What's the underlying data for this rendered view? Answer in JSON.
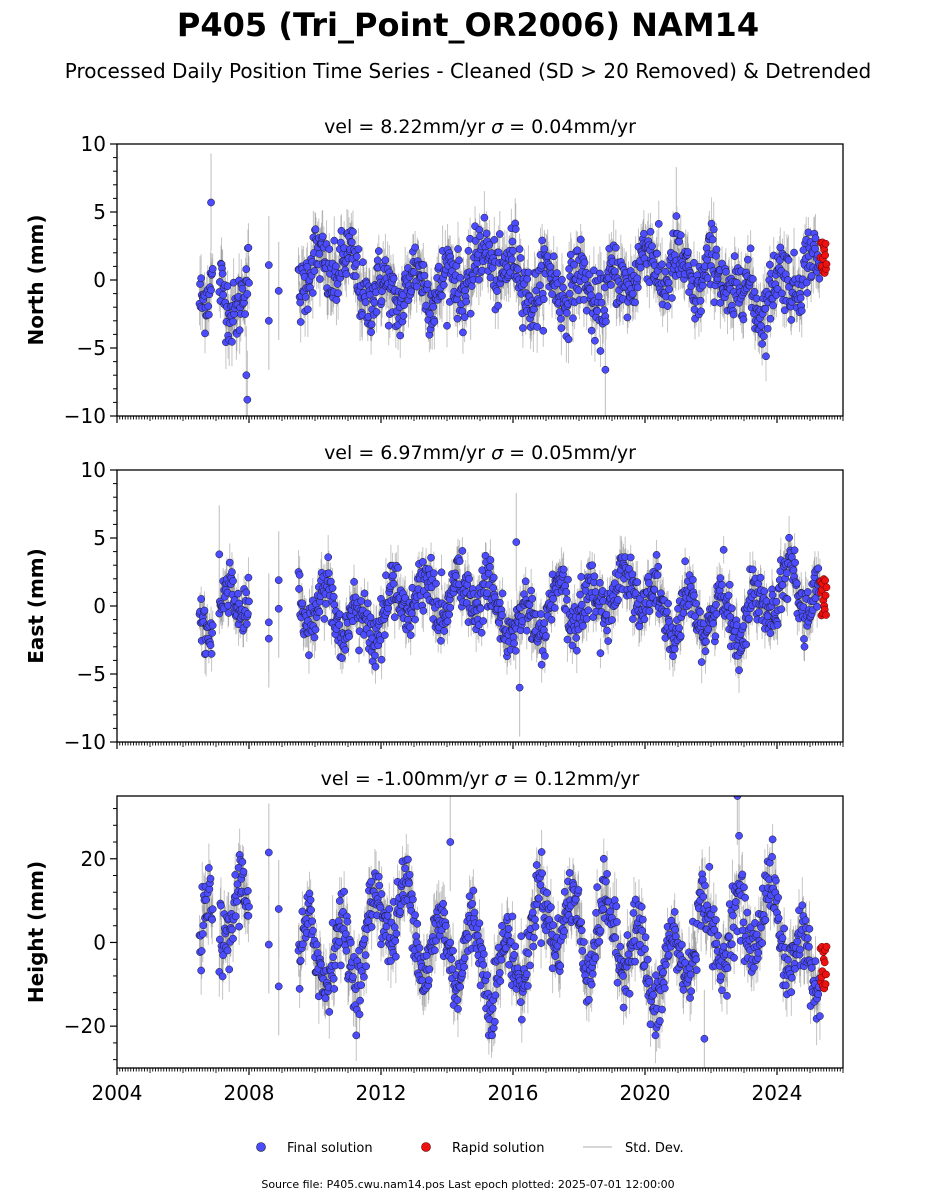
{
  "title": "P405 (Tri_Point_OR2006) NAM14",
  "subtitle": "Processed Daily Position Time Series - Cleaned (SD > 20 Removed) & Detrended",
  "colors": {
    "final": "#4b4bff",
    "final_edge": "#1a1a1a",
    "rapid": "#ee1111",
    "rapid_edge": "#550000",
    "stddev": "#c8c8c8",
    "axis": "#000000"
  },
  "chart_data": [
    {
      "type": "scatter",
      "id": "north",
      "title_prefix": "vel = 8.22mm/yr",
      "sigma_symbol": "σ",
      "title_suffix": " = 0.04mm/yr",
      "ylabel": "North (mm)",
      "ylim": [
        -10,
        10
      ],
      "yticks": [
        -10,
        -5,
        0,
        5,
        10
      ],
      "ytick_labels": [
        "−10",
        "−5",
        "0",
        "5",
        "10"
      ],
      "xlim": [
        2004.0,
        2026.0
      ],
      "segments": [
        [
          2006.5,
          2006.9
        ],
        [
          2007.1,
          2008.0
        ],
        [
          2009.5,
          2025.3
        ]
      ],
      "amplitude": 1.3,
      "noise": 1.2,
      "phase": 0.2,
      "outliers": [
        [
          2006.85,
          5.7
        ],
        [
          2007.95,
          -8.8
        ],
        [
          2007.92,
          -7.0
        ],
        [
          2008.6,
          -3.0
        ],
        [
          2008.6,
          1.1
        ],
        [
          2008.9,
          -0.8
        ],
        [
          2020.95,
          4.7
        ],
        [
          2018.8,
          -6.6
        ]
      ],
      "rapid_x": [
        2025.32,
        2025.5
      ],
      "rapid_range": [
        0.5,
        2.8
      ]
    },
    {
      "type": "scatter",
      "id": "east",
      "title_prefix": "vel = 6.97mm/yr",
      "sigma_symbol": "σ",
      "title_suffix": " = 0.05mm/yr",
      "ylabel": "East (mm)",
      "ylim": [
        -10,
        10
      ],
      "yticks": [
        -10,
        -5,
        0,
        5,
        10
      ],
      "ytick_labels": [
        "−10",
        "−5",
        "0",
        "5",
        "10"
      ],
      "xlim": [
        2004.0,
        2026.0
      ],
      "segments": [
        [
          2006.5,
          2006.9
        ],
        [
          2007.1,
          2008.0
        ],
        [
          2009.5,
          2025.3
        ]
      ],
      "amplitude": 1.5,
      "noise": 1.0,
      "phase": 0.9,
      "outliers": [
        [
          2007.1,
          3.8
        ],
        [
          2008.6,
          -2.4
        ],
        [
          2008.6,
          -1.2
        ],
        [
          2008.9,
          1.9
        ],
        [
          2008.9,
          -0.2
        ],
        [
          2016.1,
          4.7
        ],
        [
          2016.2,
          -6.0
        ]
      ],
      "rapid_x": [
        2025.32,
        2025.5
      ],
      "rapid_range": [
        -0.7,
        2.0
      ]
    },
    {
      "type": "scatter",
      "id": "height",
      "title_prefix": "vel = -1.00mm/yr",
      "sigma_symbol": "σ",
      "title_suffix": " = 0.12mm/yr",
      "ylabel": "Height (mm)",
      "ylim": [
        -30,
        35
      ],
      "yticks": [
        -20,
        0,
        20
      ],
      "ytick_labels": [
        "−20",
        "0",
        "20"
      ],
      "xlim": [
        2004.0,
        2026.0
      ],
      "segments": [
        [
          2006.5,
          2006.9
        ],
        [
          2007.1,
          2008.0
        ],
        [
          2009.5,
          2025.3
        ]
      ],
      "amplitude": 8.0,
      "noise": 4.0,
      "phase": 0.45,
      "outliers": [
        [
          2008.6,
          21.5
        ],
        [
          2008.6,
          -0.5
        ],
        [
          2008.9,
          8.0
        ],
        [
          2008.9,
          -10.5
        ],
        [
          2014.1,
          24.0
        ],
        [
          2022.8,
          35.0
        ],
        [
          2022.85,
          25.5
        ],
        [
          2021.8,
          -23.0
        ]
      ],
      "rapid_x": [
        2025.32,
        2025.5
      ],
      "rapid_range": [
        -11.0,
        -1.0
      ]
    }
  ],
  "xticks": [
    2004,
    2008,
    2012,
    2016,
    2020,
    2024
  ],
  "xtick_labels": [
    "2004",
    "2008",
    "2012",
    "2016",
    "2020",
    "2024"
  ],
  "legend": {
    "final_label": "Final solution",
    "rapid_label": "Rapid solution",
    "stddev_label": "Std. Dev."
  },
  "footer": "Source file: P405.cwu.nam14.pos  Last epoch plotted: 2025-07-01 12:00:00"
}
